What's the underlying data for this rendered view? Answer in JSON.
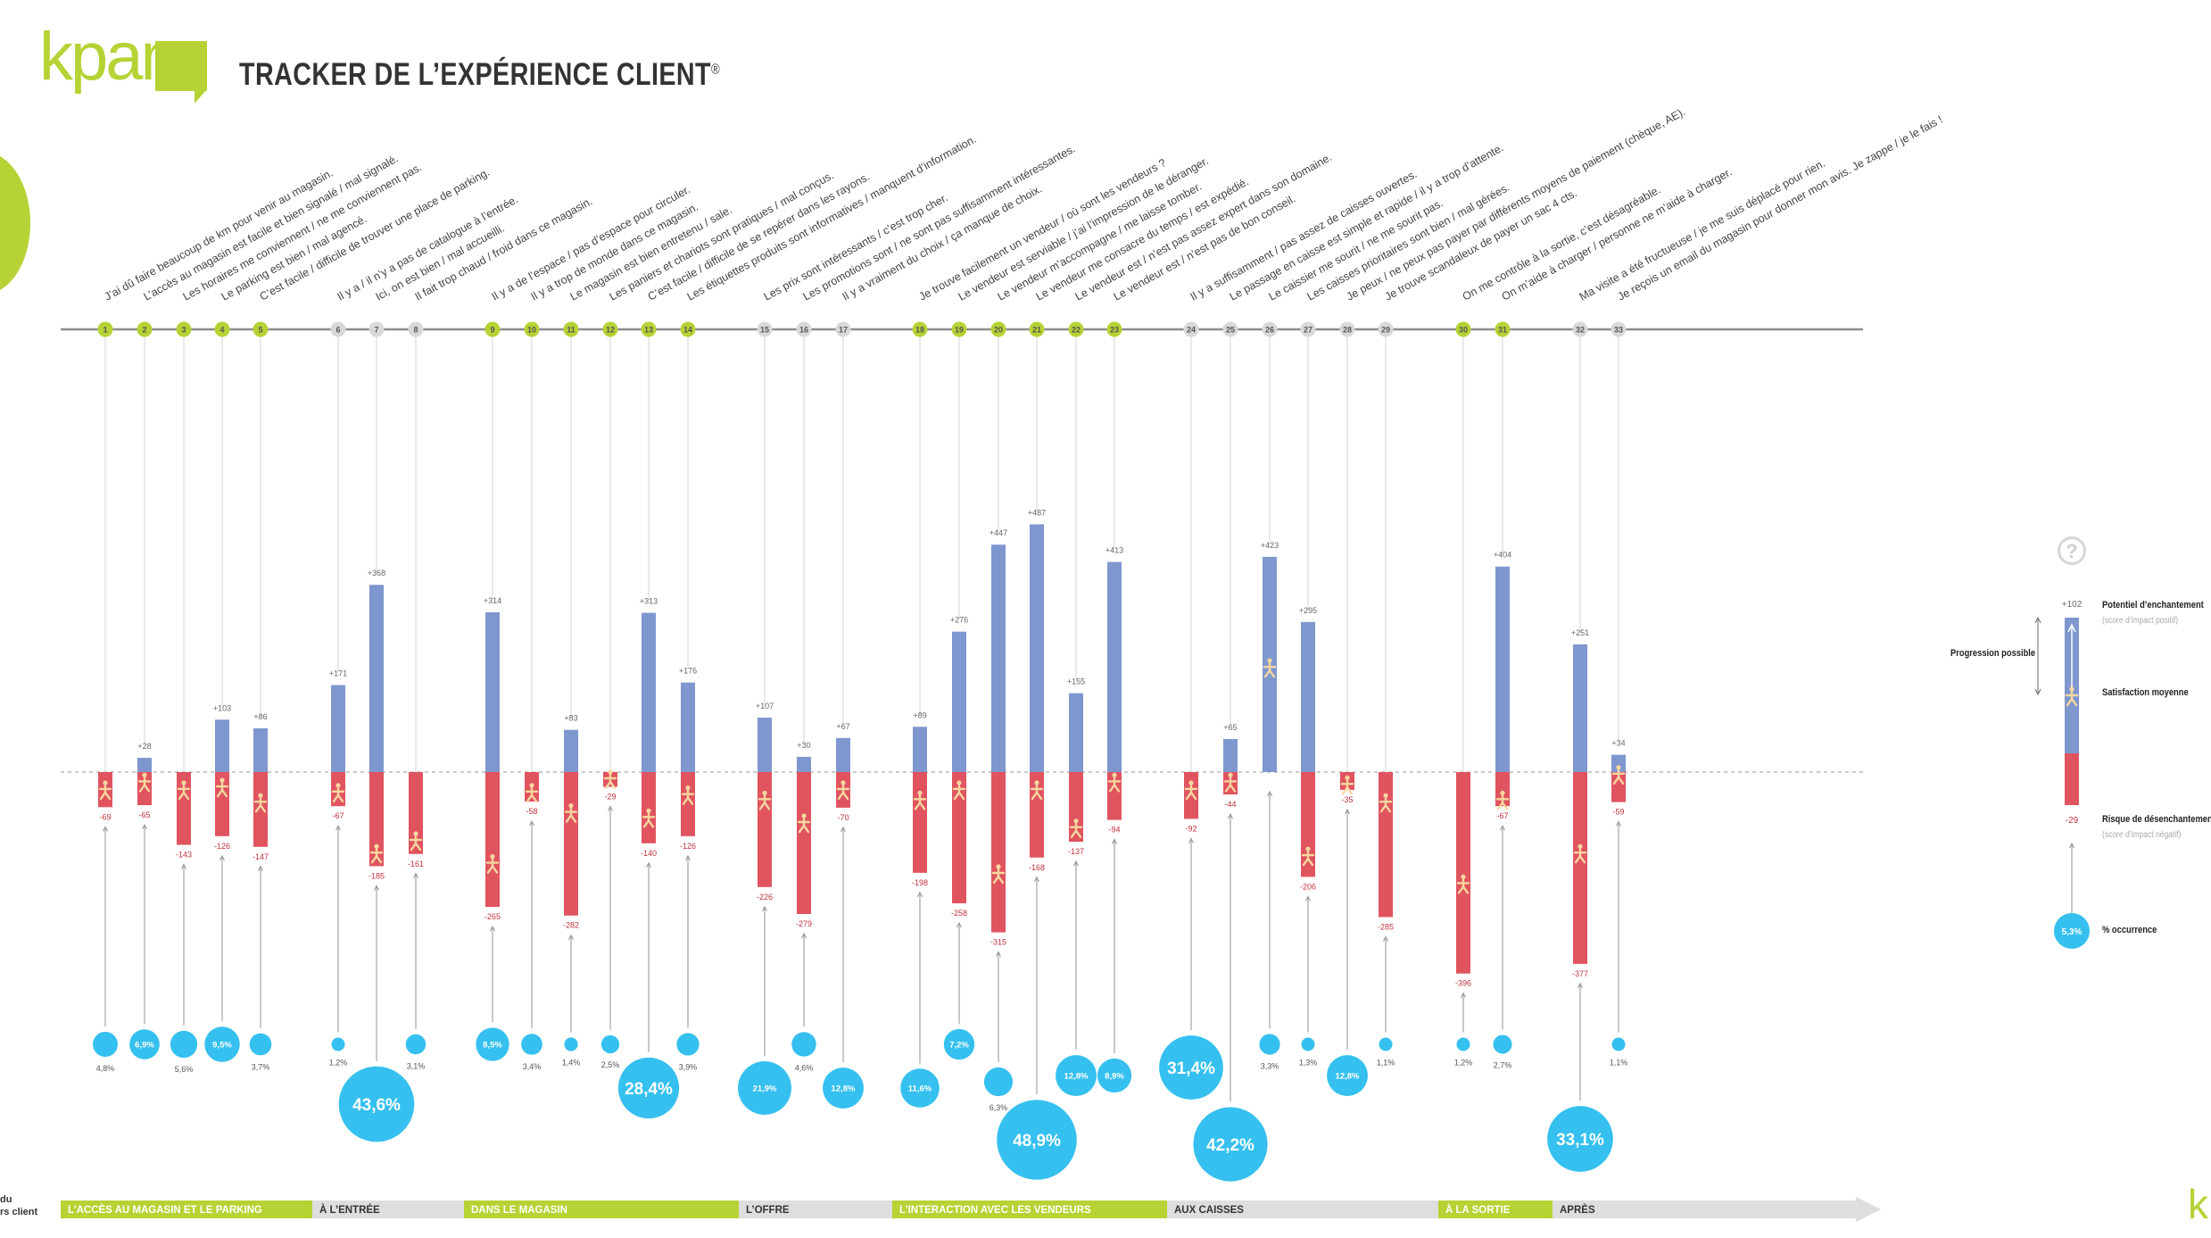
{
  "header": {
    "logo": "kpam",
    "title": "TRACKER DE L’EXPÉRIENCE CLIENT",
    "registered": "®"
  },
  "colors": {
    "green": "#b5d334",
    "blue": "#7f97cf",
    "red": "#e0545f",
    "cyan": "#35c0ef",
    "axis": "#9a9a9a",
    "gray_badge": "#d9d9d9"
  },
  "chart_data": {
    "type": "bar",
    "title": "TRACKER DE L’EXPÉRIENCE CLIENT",
    "baseline": 0,
    "ylim": [
      -400,
      500
    ],
    "series_names": [
      "Potentiel d’enchantement",
      "Risque de désenchantement",
      "% occurrence"
    ],
    "items": [
      {
        "n": "1",
        "label": "J’ai dû faire beaucoup de km pour venir au magasin.",
        "pos": null,
        "neg": -69,
        "pos_label": "",
        "neg_label": "-69",
        "occ": "4,8%",
        "occ_value": 4.8,
        "inside": false,
        "stage": 0,
        "marker": -35
      },
      {
        "n": "2",
        "label": "L’accès au magasin est facile et bien signalé / mal signalé.",
        "pos": 28,
        "neg": -65,
        "pos_label": "+28",
        "neg_label": "-65",
        "occ": "6,9%",
        "occ_value": 6.9,
        "inside": true,
        "stage": 0,
        "marker": -20
      },
      {
        "n": "3",
        "label": "Les horaires me conviennent / ne me conviennent pas.",
        "pos": null,
        "neg": -143,
        "pos_label": "",
        "neg_label": "-143",
        "occ": "5,6%",
        "occ_value": 5.6,
        "inside": false,
        "stage": 0,
        "marker": -35
      },
      {
        "n": "4",
        "label": "Le parking est bien / mal agencé.",
        "pos": 103,
        "neg": -126,
        "pos_label": "+103",
        "neg_label": "-126",
        "occ": "9,5%",
        "occ_value": 9.5,
        "inside": true,
        "stage": 0,
        "marker": -30
      },
      {
        "n": "5",
        "label": "C’est facile / difficile de trouver une place de parking.",
        "pos": 86,
        "neg": -147,
        "pos_label": "+86",
        "neg_label": "-147",
        "occ": "3,7%",
        "occ_value": 3.7,
        "inside": false,
        "stage": 0,
        "marker": -60
      },
      {
        "n": "6",
        "label": "Il y a / il n’y a pas de catalogue à l’entrée.",
        "pos": 171,
        "neg": -67,
        "pos_label": "+171",
        "neg_label": "-67",
        "occ": "1,2%",
        "occ_value": 1.2,
        "inside": false,
        "stage": 1,
        "marker": -40
      },
      {
        "n": "7",
        "label": "Ici, on est bien / mal accueilli.",
        "pos": 368,
        "neg": -185,
        "pos_label": "+368",
        "neg_label": "-185",
        "occ": "43,6%",
        "occ_value": 43.6,
        "inside": true,
        "stage": 1,
        "marker": -160
      },
      {
        "n": "8",
        "label": "Il fait trop chaud / froid dans ce magasin.",
        "pos": null,
        "neg": -161,
        "pos_label": "",
        "neg_label": "-161",
        "occ": "3,1%",
        "occ_value": 3.1,
        "inside": false,
        "stage": 1,
        "marker": -135
      },
      {
        "n": "9",
        "label": "Il y a de l’espace / pas d’espace pour circuler.",
        "pos": 314,
        "neg": -265,
        "pos_label": "+314",
        "neg_label": "-265",
        "occ": "8,5%",
        "occ_value": 8.5,
        "inside": true,
        "stage": 2,
        "marker": -180
      },
      {
        "n": "10",
        "label": "Il y a trop de monde dans ce magasin.",
        "pos": null,
        "neg": -58,
        "pos_label": "",
        "neg_label": "-58",
        "occ": "3,4%",
        "occ_value": 3.4,
        "inside": false,
        "stage": 2,
        "marker": -40
      },
      {
        "n": "11",
        "label": "Le magasin est bien entretenu / sale.",
        "pos": 83,
        "neg": -282,
        "pos_label": "+83",
        "neg_label": "-282",
        "occ": "1,4%",
        "occ_value": 1.4,
        "inside": false,
        "stage": 2,
        "marker": -80
      },
      {
        "n": "12",
        "label": "Les paniers et chariots sont pratiques / mal conçus.",
        "pos": null,
        "neg": -29,
        "pos_label": "",
        "neg_label": "-29",
        "occ": "2,5%",
        "occ_value": 2.5,
        "inside": false,
        "stage": 2,
        "marker": -14
      },
      {
        "n": "13",
        "label": "C’est facile / difficile de se repérer dans les rayons.",
        "pos": 313,
        "neg": -140,
        "pos_label": "+313",
        "neg_label": "-140",
        "occ": "28,4%",
        "occ_value": 28.4,
        "inside": true,
        "stage": 2,
        "marker": -90
      },
      {
        "n": "14",
        "label": "Les étiquettes produits sont informatives / manquent d’information.",
        "pos": 176,
        "neg": -126,
        "pos_label": "+176",
        "neg_label": "-126",
        "occ": "3,9%",
        "occ_value": 3.9,
        "inside": false,
        "stage": 2,
        "marker": -45
      },
      {
        "n": "15",
        "label": "Les prix sont intéressants / c’est trop cher.",
        "pos": 107,
        "neg": -226,
        "pos_label": "+107",
        "neg_label": "-226",
        "occ": "21,9%",
        "occ_value": 21.9,
        "inside": true,
        "stage": 3,
        "marker": -55
      },
      {
        "n": "16",
        "label": "Les promotions sont / ne sont pas suffisamment intéressantes.",
        "pos": 30,
        "neg": -279,
        "pos_label": "+30",
        "neg_label": "-279",
        "occ": "4,6%",
        "occ_value": 4.6,
        "inside": false,
        "stage": 3,
        "marker": -100
      },
      {
        "n": "17",
        "label": "Il y a vraiment du choix / ça manque de choix.",
        "pos": 67,
        "neg": -70,
        "pos_label": "+67",
        "neg_label": "-70",
        "occ": "12,8%",
        "occ_value": 12.8,
        "inside": true,
        "stage": 3,
        "marker": -35
      },
      {
        "n": "18",
        "label": "Je trouve facilement un vendeur / où sont les vendeurs ?",
        "pos": 89,
        "neg": -198,
        "pos_label": "+89",
        "neg_label": "-198",
        "occ": "11,6%",
        "occ_value": 11.6,
        "inside": true,
        "stage": 4,
        "marker": -55
      },
      {
        "n": "19",
        "label": "Le vendeur est serviable / j’ai l’impression de le déranger.",
        "pos": 276,
        "neg": -258,
        "pos_label": "+276",
        "neg_label": "-258",
        "occ": "7,2%",
        "occ_value": 7.2,
        "inside": true,
        "stage": 4,
        "marker": -35
      },
      {
        "n": "20",
        "label": "Le vendeur m’accompagne / me laisse tomber.",
        "pos": 447,
        "neg": -315,
        "pos_label": "+447",
        "neg_label": "-315",
        "occ": "6,3%",
        "occ_value": 6.3,
        "inside": false,
        "stage": 4,
        "marker": -200
      },
      {
        "n": "21",
        "label": "Le vendeur me consacre du temps / est expédié.",
        "pos": 487,
        "neg": -168,
        "pos_label": "+487",
        "neg_label": "-168",
        "occ": "48,9%",
        "occ_value": 48.9,
        "inside": true,
        "stage": 4,
        "marker": -35
      },
      {
        "n": "22",
        "label": "Le vendeur est / n’est pas assez expert dans son domaine.",
        "pos": 155,
        "neg": -137,
        "pos_label": "+155",
        "neg_label": "-137",
        "occ": "12,8%",
        "occ_value": 12.8,
        "inside": true,
        "stage": 4,
        "marker": -110
      },
      {
        "n": "23",
        "label": "Le vendeur est / n’est pas de bon conseil.",
        "pos": 413,
        "neg": -94,
        "pos_label": "+413",
        "neg_label": "-94",
        "occ": "8,9%",
        "occ_value": 8.9,
        "inside": true,
        "stage": 4,
        "marker": -20
      },
      {
        "n": "24",
        "label": "Il y a suffisamment / pas assez de caisses ouvertes.",
        "pos": null,
        "neg": -92,
        "pos_label": "",
        "neg_label": "-92",
        "occ": "31,4%",
        "occ_value": 31.4,
        "inside": true,
        "stage": 5,
        "marker": -35
      },
      {
        "n": "25",
        "label": "Le passage en caisse est simple et rapide / il y a trop d’attente.",
        "pos": 65,
        "neg": -44,
        "pos_label": "+65",
        "neg_label": "-44",
        "occ": "42,2%",
        "occ_value": 42.2,
        "inside": true,
        "stage": 5,
        "marker": -20
      },
      {
        "n": "26",
        "label": "Le caissier me sourit / ne me sourit pas.",
        "pos": 423,
        "neg": null,
        "pos_label": "+423",
        "neg_label": "",
        "occ": "3,3%",
        "occ_value": 3.3,
        "inside": false,
        "stage": 5,
        "marker": 205
      },
      {
        "n": "27",
        "label": "Les caisses prioritaires sont bien / mal gérées.",
        "pos": 295,
        "neg": -206,
        "pos_label": "+295",
        "neg_label": "-206",
        "occ": "1,3%",
        "occ_value": 1.3,
        "inside": false,
        "stage": 5,
        "marker": -165
      },
      {
        "n": "28",
        "label": "Je peux / ne peux pas payer par différents moyens de paiement (chèque, AE).",
        "pos": null,
        "neg": -35,
        "pos_label": "",
        "neg_label": "-35",
        "occ": "12,8%",
        "occ_value": 12.8,
        "inside": true,
        "stage": 5,
        "marker": -25
      },
      {
        "n": "29",
        "label": "Je trouve scandaleux de payer un sac 4 cts.",
        "pos": null,
        "neg": -285,
        "pos_label": "",
        "neg_label": "-285",
        "occ": "1,1%",
        "occ_value": 1.1,
        "inside": false,
        "stage": 5,
        "marker": -60
      },
      {
        "n": "30",
        "label": "On me contrôle à la sortie, c’est désagréable.",
        "pos": null,
        "neg": -396,
        "pos_label": "",
        "neg_label": "-396",
        "occ": "1,2%",
        "occ_value": 1.2,
        "inside": false,
        "stage": 6,
        "marker": -220
      },
      {
        "n": "31",
        "label": "On m’aide à charger / personne ne m’aide à charger.",
        "pos": 404,
        "neg": -67,
        "pos_label": "+404",
        "neg_label": "-67",
        "occ": "2,7%",
        "occ_value": 2.7,
        "inside": false,
        "stage": 6,
        "marker": -55
      },
      {
        "n": "32",
        "label": "Ma visite a été fructueuse / je me suis déplacé pour rien.",
        "pos": 251,
        "neg": -377,
        "pos_label": "+251",
        "neg_label": "-377",
        "occ": "33,1%",
        "occ_value": 33.1,
        "inside": true,
        "stage": 7,
        "marker": -160
      },
      {
        "n": "33",
        "label": "Je reçois un email du magasin pour donner mon avis. Je zappe / je le fais !",
        "pos": 34,
        "neg": -59,
        "pos_label": "+34",
        "neg_label": "-59",
        "occ": "1,1%",
        "occ_value": 1.1,
        "inside": false,
        "stage": 7,
        "marker": -5
      }
    ],
    "stages": [
      {
        "label": "L’ACCÈS AU MAGASIN ET LE PARKING",
        "color": "green"
      },
      {
        "label": "À L’ENTRÉE",
        "color": "gray"
      },
      {
        "label": "DANS LE MAGASIN",
        "color": "green"
      },
      {
        "label": "L’OFFRE",
        "color": "gray"
      },
      {
        "label": "L’INTERACTION AVEC LES VENDEURS",
        "color": "green"
      },
      {
        "label": "AUX CAISSES",
        "color": "gray"
      },
      {
        "label": "À LA SORTIE",
        "color": "green"
      },
      {
        "label": "APRÈS",
        "color": "gray"
      }
    ]
  },
  "legend": {
    "help": "?",
    "progression": "Progression possible",
    "pos_value": "+102",
    "pos_title": "Potentiel d’enchantement",
    "pos_sub": "(score d’impact positif)",
    "mid_title": "Satisfaction moyenne",
    "neg_value": "-29",
    "neg_title": "Risque de désenchantement",
    "neg_sub": "(score d’impact négatif)",
    "occ_value": "5,3%",
    "occ_title": "% occurrence"
  },
  "footer": {
    "left_line1": "du",
    "left_line2": "rs client",
    "right_fragment": "kp"
  }
}
